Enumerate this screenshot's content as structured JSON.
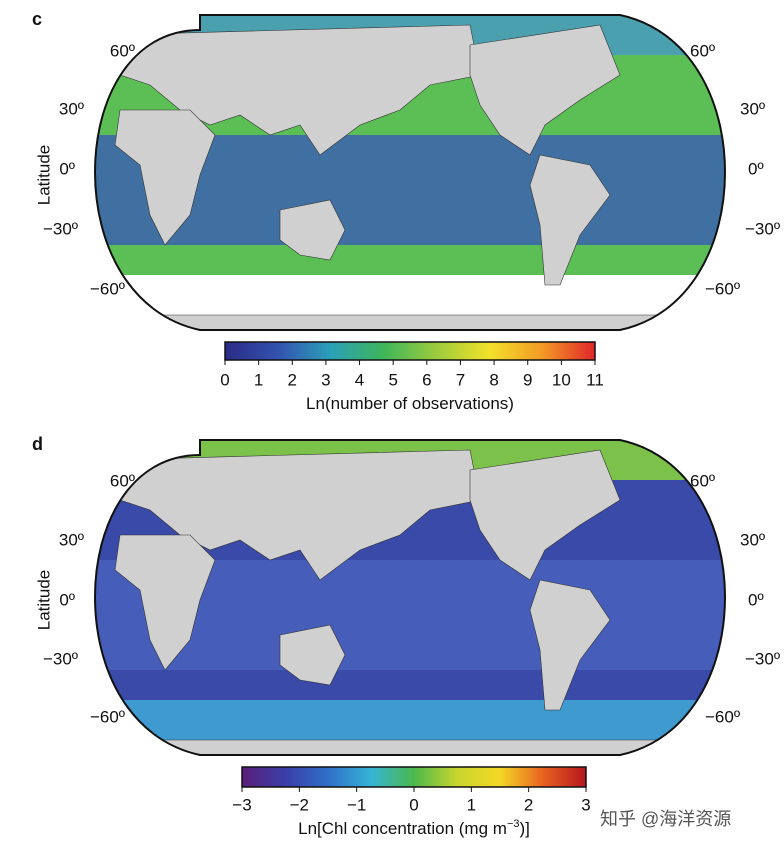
{
  "panels": [
    {
      "label": "c",
      "ylabel": "Latitude",
      "lat_left": [
        {
          "value": 60,
          "label": "60º"
        },
        {
          "value": 30,
          "label": "30º"
        },
        {
          "value": 0,
          "label": "0º"
        },
        {
          "value": -30,
          "label": "−30º"
        },
        {
          "value": -60,
          "label": "−60º"
        }
      ],
      "lat_right": [
        {
          "value": 60,
          "label": "60º"
        },
        {
          "value": 30,
          "label": "30º"
        },
        {
          "value": 0,
          "label": "0º"
        },
        {
          "value": -30,
          "label": "−30º"
        },
        {
          "value": -60,
          "label": "−60º"
        }
      ],
      "colorbar": {
        "lim": [
          0,
          11
        ],
        "ticks": [
          0,
          1,
          2,
          3,
          4,
          5,
          6,
          7,
          8,
          9,
          10,
          11
        ],
        "colors": [
          "#2a2c86",
          "#3352b0",
          "#2aa0b8",
          "#3fb55a",
          "#9ccb3c",
          "#f3e12a",
          "#f39a25",
          "#e0262a"
        ],
        "label": "Ln(number of observations)"
      }
    },
    {
      "label": "d",
      "ylabel": "Latitude",
      "lat_left": [
        {
          "value": 60,
          "label": "60º"
        },
        {
          "value": 30,
          "label": "30º"
        },
        {
          "value": 0,
          "label": "0º"
        },
        {
          "value": -30,
          "label": "−30º"
        },
        {
          "value": -60,
          "label": "−60º"
        }
      ],
      "lat_right": [
        {
          "value": 60,
          "label": "60º"
        },
        {
          "value": 30,
          "label": "30º"
        },
        {
          "value": 0,
          "label": "0º"
        },
        {
          "value": -30,
          "label": "−30º"
        },
        {
          "value": -60,
          "label": "−60º"
        }
      ],
      "colorbar": {
        "lim": [
          -3,
          3
        ],
        "ticks": [
          {
            "value": -3,
            "label": "−3"
          },
          {
            "value": -2,
            "label": "−2"
          },
          {
            "value": -1,
            "label": "−1"
          },
          0,
          1,
          2,
          3
        ],
        "colors": [
          "#5a1f78",
          "#3a3ea8",
          "#2f6fc8",
          "#35b4d6",
          "#4bb84c",
          "#c9d52e",
          "#f3d725",
          "#e8621f",
          "#b5151e"
        ],
        "label": "Ln[Chl concentration (mg m",
        "label_sup": "−3",
        "label_end": ")]"
      }
    }
  ],
  "watermark": "知乎 @海洋资源"
}
